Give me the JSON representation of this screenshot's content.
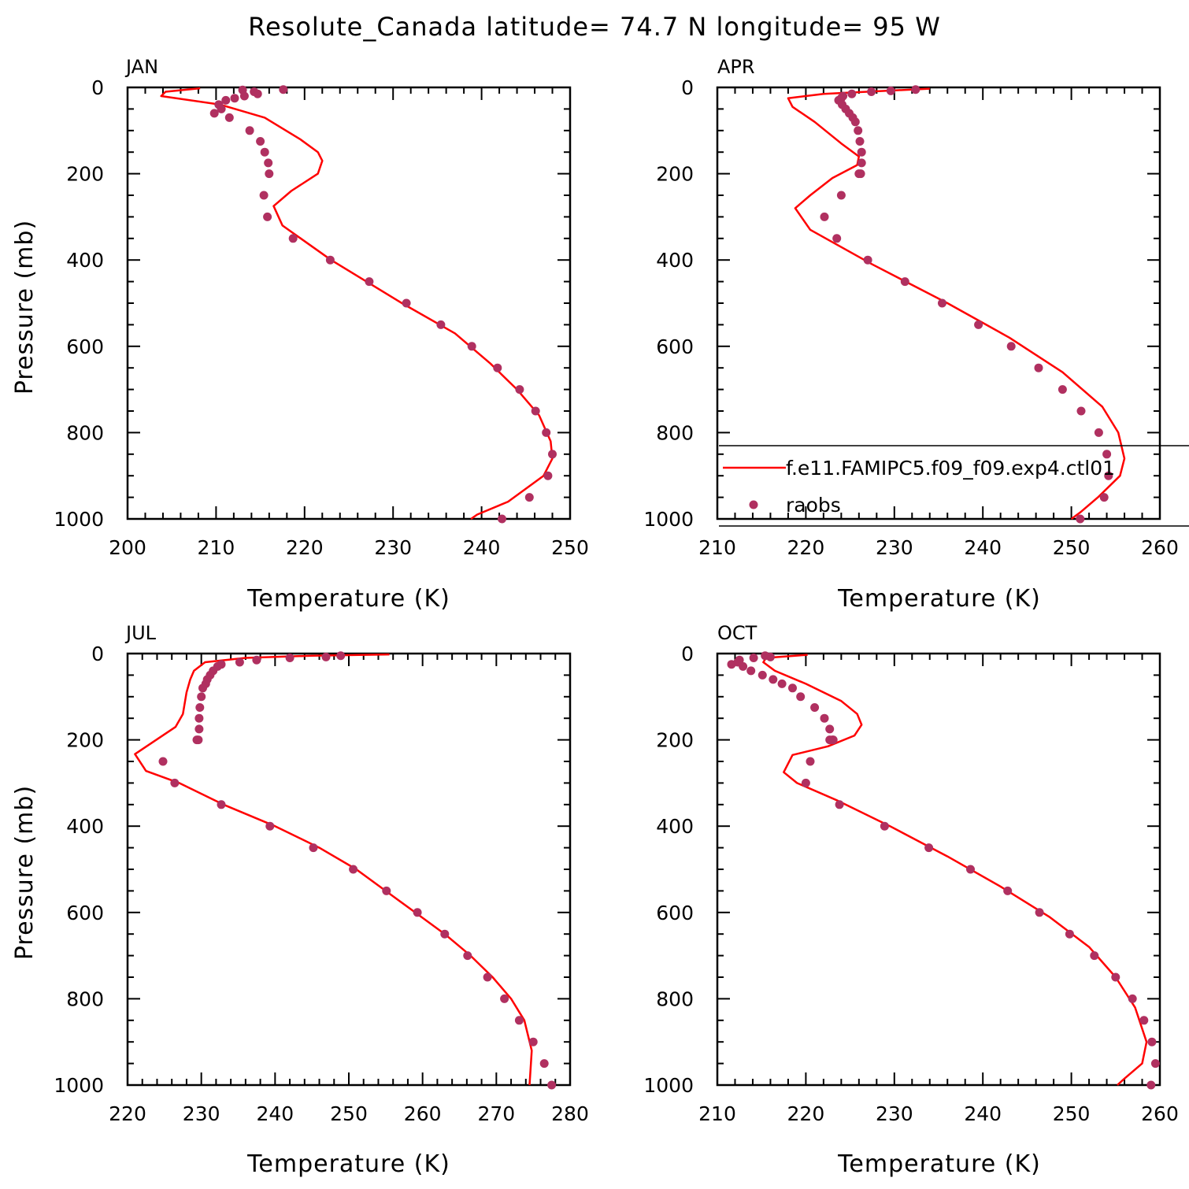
{
  "title": "Resolute_Canada  latitude= 74.7 N longitude= 95 W",
  "colors": {
    "model_line": "#ff0000",
    "obs_marker": "#b03060",
    "axis": "#000000"
  },
  "legend": {
    "panel": "APR",
    "model_label": "f.e11.FAMIPC5.f09_f09.exp4.ctl01",
    "obs_label": "raobs"
  },
  "chart_data": [
    {
      "type": "line+scatter",
      "panel": "JAN",
      "xlabel": "Temperature (K)",
      "ylabel": "Pressure (mb)",
      "xlim": [
        200,
        250
      ],
      "ylim": [
        1000,
        0
      ],
      "xticks": [
        200,
        210,
        220,
        230,
        240,
        250
      ],
      "yticks": [
        0,
        200,
        400,
        600,
        800,
        1000
      ],
      "model": {
        "name": "f.e11.FAMIPC5.f09_f09.exp4.ctl01",
        "T": [
          208.2,
          204.3,
          203.8,
          210.5,
          215.5,
          219.5,
          221.5,
          222.0,
          221.5,
          218.5,
          216.5,
          217.5,
          223.0,
          231.0,
          237.0,
          241.0,
          244.0,
          246.5,
          247.8,
          248.0,
          247.0,
          243.0,
          239.5,
          238.8
        ],
        "p": [
          2,
          10,
          20,
          40,
          70,
          120,
          150,
          170,
          200,
          240,
          275,
          320,
          400,
          500,
          570,
          640,
          700,
          760,
          820,
          860,
          900,
          960,
          990,
          1000
        ]
      },
      "obs": {
        "name": "raobs",
        "T": [
          217.6,
          213.0,
          214.3,
          214.7,
          213.2,
          212.1,
          211.1,
          210.3,
          210.6,
          209.8,
          211.5,
          213.8,
          215.0,
          215.5,
          215.9,
          216.0,
          215.4,
          215.8,
          218.7,
          222.9,
          227.3,
          231.5,
          235.4,
          238.9,
          241.8,
          244.3,
          246.1,
          247.3,
          248.0,
          247.5,
          245.4,
          242.3
        ],
        "p": [
          5,
          6,
          10,
          15,
          20,
          25,
          30,
          40,
          50,
          60,
          70,
          100,
          125,
          150,
          175,
          200,
          250,
          300,
          350,
          400,
          450,
          500,
          550,
          600,
          650,
          700,
          750,
          800,
          850,
          900,
          950,
          1000
        ]
      }
    },
    {
      "type": "line+scatter",
      "panel": "APR",
      "xlabel": "Temperature (K)",
      "ylabel": "",
      "xlim": [
        210,
        260
      ],
      "ylim": [
        1000,
        0
      ],
      "xticks": [
        210,
        220,
        230,
        240,
        250,
        260
      ],
      "yticks": [
        0,
        200,
        400,
        600,
        800,
        1000
      ],
      "model": {
        "name": "f.e11.FAMIPC5.f09_f09.exp4.ctl01",
        "T": [
          234.0,
          222.0,
          218.0,
          218.5,
          221.0,
          224.0,
          226.0,
          225.8,
          223.0,
          220.5,
          218.8,
          220.5,
          227.5,
          236.0,
          243.0,
          249.0,
          253.5,
          255.3,
          256.0,
          255.5,
          253.0,
          251.0,
          250.0
        ],
        "p": [
          3,
          15,
          25,
          45,
          80,
          130,
          160,
          180,
          210,
          250,
          280,
          330,
          410,
          500,
          580,
          660,
          740,
          800,
          860,
          900,
          950,
          985,
          1000
        ]
      },
      "obs": {
        "name": "raobs",
        "T": [
          232.4,
          229.6,
          227.4,
          225.2,
          224.2,
          224.0,
          223.7,
          224.1,
          224.5,
          224.9,
          225.3,
          225.6,
          225.9,
          226.1,
          226.3,
          226.3,
          226.2,
          226.0,
          224.0,
          222.1,
          223.5,
          227.0,
          231.2,
          235.4,
          239.5,
          243.2,
          246.3,
          249.0,
          251.1,
          253.1,
          254.0,
          254.2,
          253.7,
          251.0
        ],
        "p": [
          5,
          8,
          10,
          15,
          20,
          25,
          30,
          40,
          50,
          60,
          70,
          80,
          100,
          125,
          150,
          175,
          200,
          200,
          250,
          300,
          350,
          400,
          450,
          500,
          550,
          600,
          650,
          700,
          750,
          800,
          850,
          900,
          950,
          1000
        ]
      }
    },
    {
      "type": "line+scatter",
      "panel": "JUL",
      "xlabel": "Temperature (K)",
      "ylabel": "Pressure (mb)",
      "xlim": [
        220,
        280
      ],
      "ylim": [
        1000,
        0
      ],
      "xticks": [
        220,
        230,
        240,
        250,
        260,
        270,
        280
      ],
      "yticks": [
        0,
        200,
        400,
        600,
        800,
        1000
      ],
      "model": {
        "name": "f.e11.FAMIPC5.f09_f09.exp4.ctl01",
        "T": [
          255.5,
          245.0,
          236.0,
          230.5,
          229.0,
          228.5,
          228.0,
          227.5,
          226.5,
          221.0,
          222.5,
          227.0,
          233.0,
          240.0,
          246.0,
          251.0,
          255.0,
          259.0,
          263.0,
          266.5,
          269.5,
          272.0,
          273.8,
          274.8,
          274.5
        ],
        "p": [
          2,
          5,
          10,
          20,
          40,
          60,
          90,
          140,
          170,
          233,
          272,
          300,
          350,
          400,
          450,
          500,
          550,
          600,
          650,
          700,
          750,
          800,
          850,
          920,
          1000
        ]
      },
      "obs": {
        "name": "raobs",
        "T": [
          248.9,
          246.9,
          242.0,
          237.5,
          235.2,
          232.7,
          232.2,
          231.6,
          231.2,
          230.8,
          230.6,
          230.2,
          230.0,
          229.8,
          229.7,
          229.7,
          229.6,
          229.4,
          224.8,
          226.4,
          232.7,
          239.3,
          245.2,
          250.6,
          255.1,
          259.3,
          263.0,
          266.1,
          268.8,
          271.1,
          273.1,
          275.0,
          276.5,
          277.5
        ],
        "p": [
          5,
          8,
          10,
          15,
          20,
          25,
          30,
          40,
          50,
          60,
          70,
          80,
          100,
          125,
          150,
          175,
          200,
          200,
          250,
          300,
          350,
          400,
          450,
          500,
          550,
          600,
          650,
          700,
          750,
          800,
          850,
          900,
          950,
          1000
        ]
      }
    },
    {
      "type": "line+scatter",
      "panel": "OCT",
      "xlabel": "Temperature (K)",
      "ylabel": "",
      "xlim": [
        210,
        260
      ],
      "ylim": [
        1000,
        0
      ],
      "xticks": [
        210,
        220,
        230,
        240,
        250,
        260
      ],
      "yticks": [
        0,
        200,
        400,
        600,
        800,
        1000
      ],
      "model": {
        "name": "f.e11.FAMIPC5.f09_f09.exp4.ctl01",
        "T": [
          220.2,
          215.5,
          215.2,
          216.5,
          220.0,
          224.0,
          225.8,
          226.3,
          225.5,
          222.5,
          218.5,
          217.5,
          219.0,
          223.5,
          229.5,
          236.0,
          242.0,
          247.5,
          252.0,
          255.0,
          257.2,
          258.5,
          258.0,
          256.0,
          255.2
        ],
        "p": [
          3,
          10,
          20,
          40,
          70,
          110,
          140,
          165,
          190,
          215,
          235,
          275,
          300,
          340,
          400,
          470,
          540,
          610,
          680,
          750,
          820,
          900,
          950,
          985,
          1000
        ]
      },
      "obs": {
        "name": "raobs",
        "T": [
          215.4,
          216.0,
          214.1,
          212.5,
          212.3,
          211.6,
          212.9,
          213.8,
          215.1,
          216.3,
          217.3,
          218.5,
          219.4,
          221.0,
          222.1,
          222.7,
          223.0,
          223.1,
          222.7,
          220.5,
          220.0,
          223.8,
          228.9,
          233.9,
          238.6,
          242.8,
          246.4,
          249.8,
          252.6,
          255.0,
          256.9,
          258.2,
          259.1,
          259.5,
          259.0
        ],
        "p": [
          5,
          8,
          10,
          15,
          20,
          25,
          30,
          40,
          50,
          60,
          70,
          80,
          100,
          125,
          150,
          175,
          200,
          200,
          200,
          250,
          300,
          350,
          400,
          450,
          500,
          550,
          600,
          650,
          700,
          750,
          800,
          850,
          900,
          950,
          1000
        ]
      }
    }
  ]
}
